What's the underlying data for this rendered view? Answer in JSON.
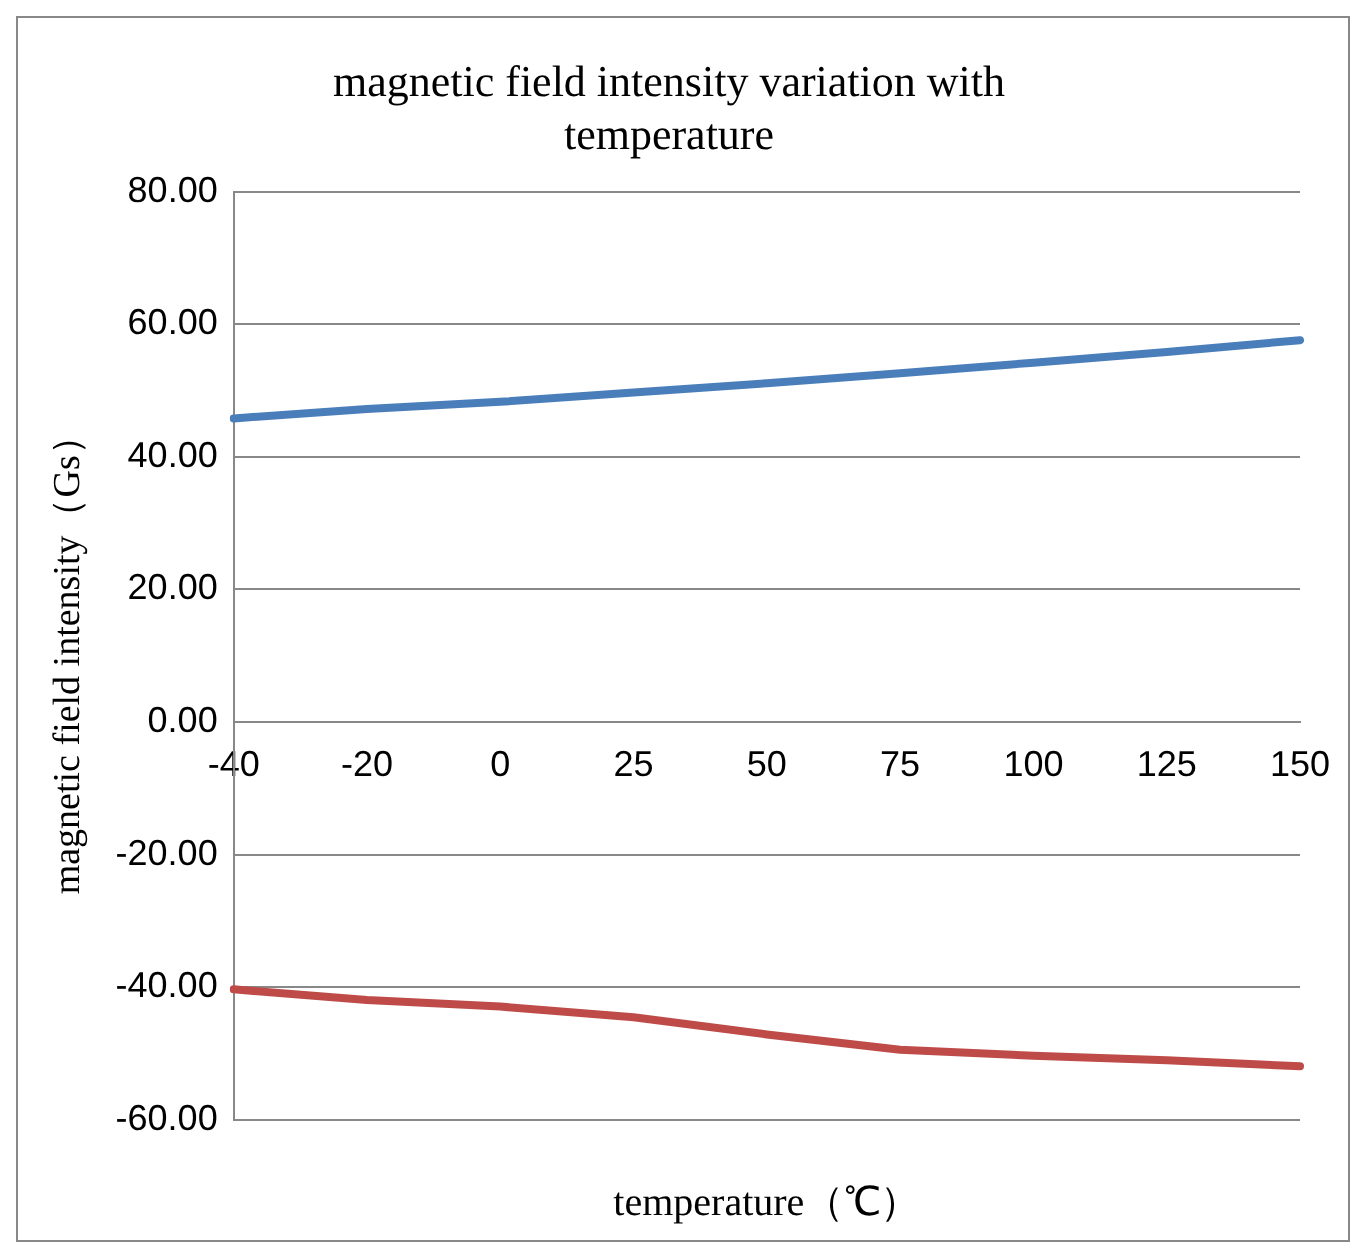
{
  "chart_data": {
    "type": "line",
    "title": "magnetic field intensity variation with temperature",
    "xlabel": "temperature（℃）",
    "ylabel": "magnetic field intensity（Gs）",
    "categories": [
      "-40",
      "-20",
      "0",
      "25",
      "50",
      "75",
      "100",
      "125",
      "150"
    ],
    "series": [
      {
        "color": "#4a7ebb",
        "values": [
          45.8,
          47.2,
          48.3,
          49.7,
          51.1,
          52.6,
          54.2,
          55.8,
          57.6
        ]
      },
      {
        "color": "#be4b48",
        "values": [
          -40.3,
          -41.9,
          -42.9,
          -44.5,
          -47.1,
          -49.4,
          -50.3,
          -51.0,
          -51.9
        ]
      }
    ],
    "ylim": [
      -60,
      80
    ],
    "yticks": [
      {
        "value": -60,
        "label": "-60.00"
      },
      {
        "value": -40,
        "label": "-40.00"
      },
      {
        "value": -20,
        "label": "-20.00"
      },
      {
        "value": 0,
        "label": "0.00"
      },
      {
        "value": 20,
        "label": "20.00"
      },
      {
        "value": 40,
        "label": "40.00"
      },
      {
        "value": 60,
        "label": "60.00"
      },
      {
        "value": 80,
        "label": "80.00"
      }
    ],
    "grid": "y",
    "legend": false,
    "marker": "none",
    "line_style": "solid"
  }
}
